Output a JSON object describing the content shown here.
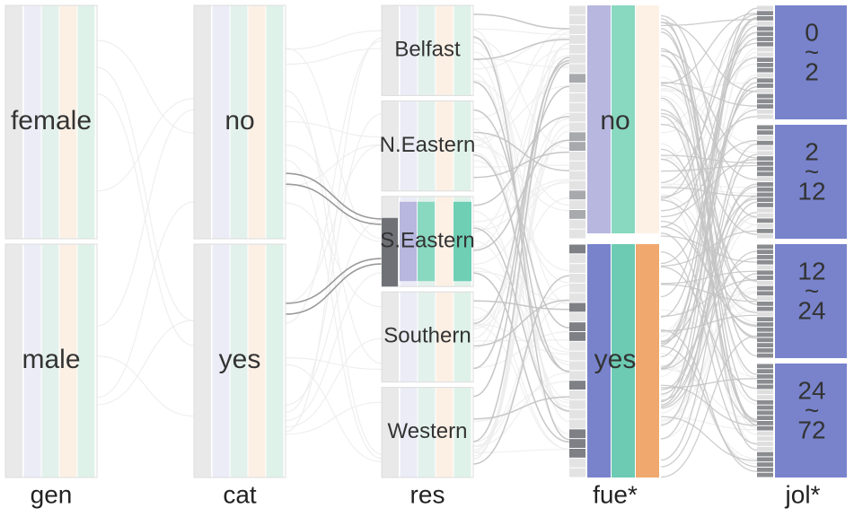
{
  "chart_data": {
    "type": "parallel-sets",
    "dimensions": [
      {
        "name": "gen",
        "categories": [
          "female",
          "male"
        ]
      },
      {
        "name": "cat",
        "categories": [
          "no",
          "yes"
        ]
      },
      {
        "name": "res",
        "categories": [
          "Belfast",
          "N.Eastern",
          "S.Eastern",
          "Southern",
          "Western"
        ]
      },
      {
        "name": "fue*",
        "categories": [
          "no",
          "yes"
        ]
      },
      {
        "name": "jol*",
        "categories": [
          "0\n~\n2",
          "2\n~\n12",
          "12\n~\n24",
          "24\n~\n72"
        ]
      }
    ],
    "category_fractions": {
      "gen": [
        0.5,
        0.5
      ],
      "cat": [
        0.5,
        0.5
      ],
      "res": [
        0.2,
        0.2,
        0.2,
        0.2,
        0.2
      ],
      "fue*": [
        0.5,
        0.5
      ],
      "jol*": [
        0.25,
        0.25,
        0.25,
        0.25
      ]
    },
    "highlighted": {
      "res": "S.Eastern",
      "fue*": "yes"
    },
    "colors": {
      "rest_gray": "#e9e9e9",
      "rest_lavender": "#ececf7",
      "rest_mint": "#e3f1ec",
      "rest_peach": "#fcf0e5",
      "rest_green": "#dff2ea",
      "active_lavender": "#b7b7e0",
      "active_teal": "#89d8c0",
      "active_peach": "#fdf1e6",
      "active_teal2": "#6fcfb4",
      "blue": "#7883cc",
      "teal": "#6ccbb2",
      "orange": "#f0a86e",
      "dark_gray": "#6f7177",
      "flow_gray": "#c4c4c4",
      "flow_light": "#ededed"
    }
  }
}
